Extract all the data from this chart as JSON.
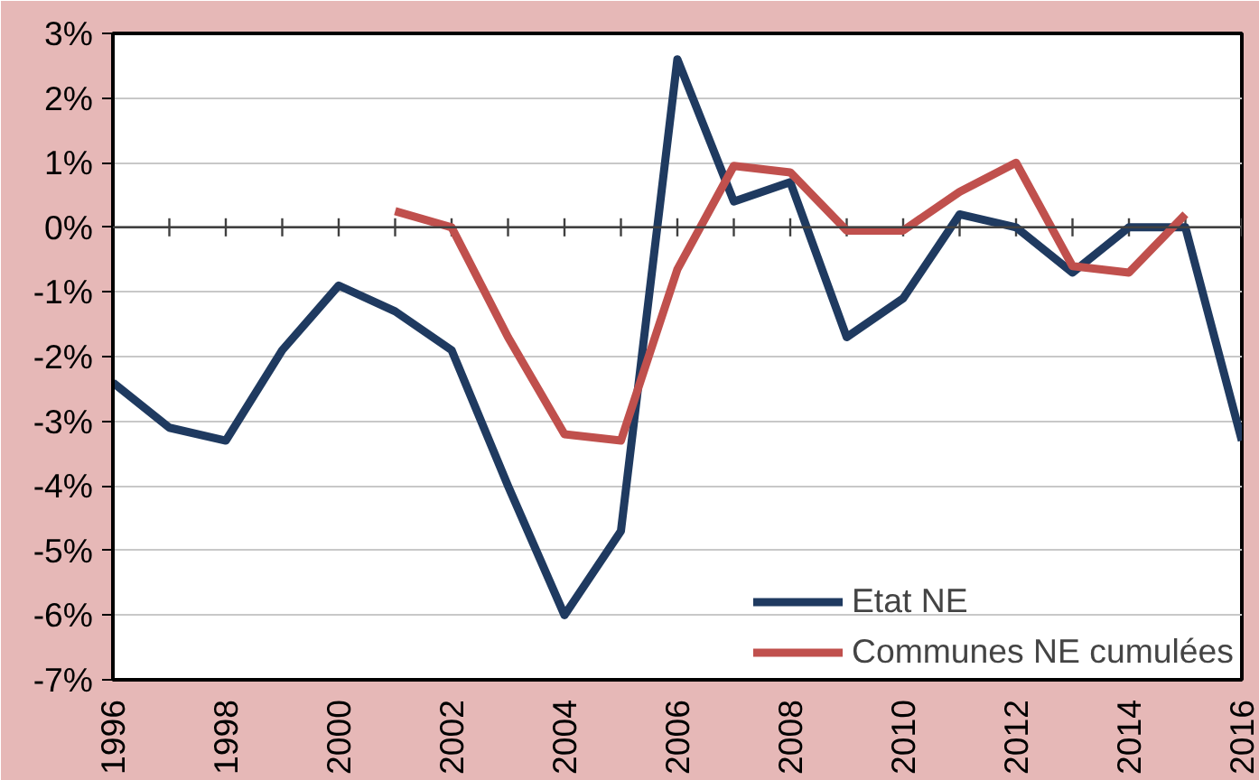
{
  "chart_data": {
    "type": "line",
    "x": [
      1996,
      1997,
      1998,
      1999,
      2000,
      2001,
      2002,
      2003,
      2004,
      2005,
      2006,
      2007,
      2008,
      2009,
      2010,
      2011,
      2012,
      2013,
      2014,
      2015,
      2016
    ],
    "series": [
      {
        "name": "Etat NE",
        "color": "#1f3a60",
        "values": [
          -2.4,
          -3.1,
          -3.3,
          -1.9,
          -0.9,
          -1.3,
          -1.9,
          -4.0,
          -6.0,
          -4.7,
          2.6,
          0.4,
          0.7,
          -1.7,
          -1.1,
          0.2,
          0.0,
          -0.7,
          0.0,
          0.0,
          -3.3
        ]
      },
      {
        "name": "Communes NE cumulées",
        "color": "#c0504d",
        "values": [
          null,
          null,
          null,
          null,
          null,
          0.25,
          0.0,
          -1.7,
          -3.2,
          -3.3,
          -0.65,
          0.95,
          0.85,
          -0.05,
          -0.05,
          0.55,
          1.0,
          -0.6,
          -0.7,
          0.2,
          null
        ]
      }
    ],
    "xlim": [
      1996,
      2016
    ],
    "xticks": [
      1996,
      1998,
      2000,
      2002,
      2004,
      2006,
      2008,
      2010,
      2012,
      2014,
      2016
    ],
    "ylim": [
      -7,
      3
    ],
    "yticks": [
      {
        "value": -7,
        "label": "-7%"
      },
      {
        "value": -6,
        "label": "-6%"
      },
      {
        "value": -5,
        "label": "-5%"
      },
      {
        "value": -4,
        "label": "-4%"
      },
      {
        "value": -3,
        "label": "-3%"
      },
      {
        "value": -2,
        "label": "-2%"
      },
      {
        "value": -1,
        "label": "-1%"
      },
      {
        "value": 0,
        "label": "0%"
      },
      {
        "value": 1,
        "label": "1%"
      },
      {
        "value": 2,
        "label": "2%"
      },
      {
        "value": 3,
        "label": "3%"
      }
    ],
    "ref_lines": [
      {
        "axis": "y",
        "value": 0,
        "color": "#404040"
      }
    ],
    "grid": "y",
    "legend": "bottom right",
    "marker": "none",
    "line_style": "solid"
  }
}
